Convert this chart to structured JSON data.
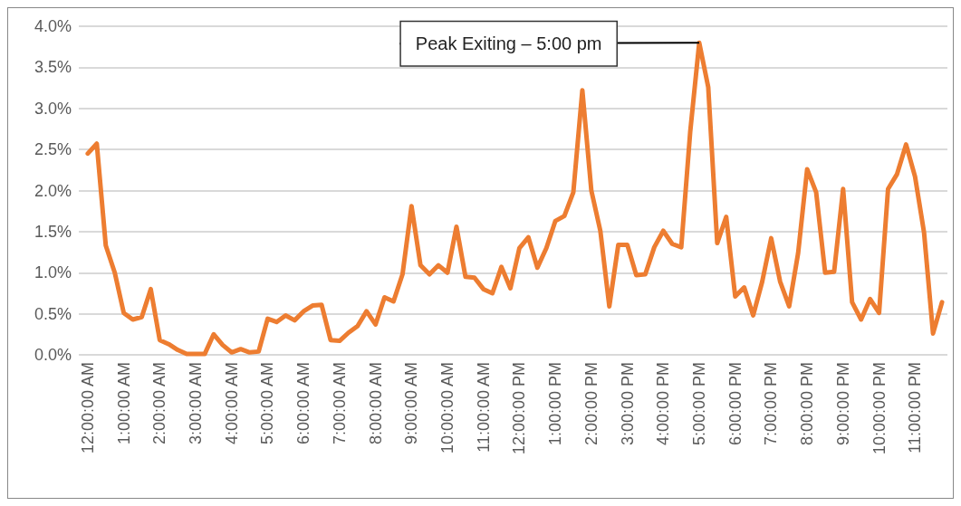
{
  "chart_data": {
    "type": "line",
    "x": [
      0,
      0.25,
      0.5,
      0.75,
      1,
      1.25,
      1.5,
      1.75,
      2,
      2.25,
      2.5,
      2.75,
      3,
      3.25,
      3.5,
      3.75,
      4,
      4.25,
      4.5,
      4.75,
      5,
      5.25,
      5.5,
      5.75,
      6,
      6.25,
      6.5,
      6.75,
      7,
      7.25,
      7.5,
      7.75,
      8,
      8.25,
      8.5,
      8.75,
      9,
      9.25,
      9.5,
      9.75,
      10,
      10.25,
      10.5,
      10.75,
      11,
      11.25,
      11.5,
      11.75,
      12,
      12.25,
      12.5,
      12.75,
      13,
      13.25,
      13.5,
      13.75,
      14,
      14.25,
      14.5,
      14.75,
      15,
      15.25,
      15.5,
      15.75,
      16,
      16.25,
      16.5,
      16.75,
      17,
      17.25,
      17.5,
      17.75,
      18,
      18.25,
      18.5,
      18.75,
      19,
      19.25,
      19.5,
      19.75,
      20,
      20.25,
      20.5,
      20.75,
      21,
      21.25,
      21.5,
      21.75,
      22,
      22.25,
      22.5,
      22.75,
      23,
      23.25,
      23.5,
      23.75
    ],
    "series": [
      {
        "color": "#ed7d31",
        "values": [
          2.45,
          2.57,
          1.33,
          1.0,
          0.51,
          0.43,
          0.46,
          0.8,
          0.18,
          0.13,
          0.06,
          0.01,
          0.01,
          0.01,
          0.25,
          0.12,
          0.03,
          0.07,
          0.03,
          0.04,
          0.44,
          0.4,
          0.48,
          0.42,
          0.53,
          0.6,
          0.61,
          0.18,
          0.17,
          0.27,
          0.35,
          0.53,
          0.37,
          0.7,
          0.65,
          0.98,
          1.81,
          1.09,
          0.98,
          1.09,
          1.0,
          1.56,
          0.95,
          0.94,
          0.8,
          0.75,
          1.07,
          0.81,
          1.3,
          1.43,
          1.06,
          1.3,
          1.63,
          1.69,
          1.98,
          3.22,
          2.0,
          1.51,
          0.59,
          1.34,
          1.34,
          0.97,
          0.98,
          1.31,
          1.51,
          1.35,
          1.31,
          2.72,
          3.8,
          3.26,
          1.36,
          1.68,
          0.71,
          0.82,
          0.48,
          0.89,
          1.42,
          0.89,
          0.59,
          1.24,
          2.26,
          1.98,
          1.0,
          1.01,
          2.02,
          0.64,
          0.43,
          0.68,
          0.51,
          2.02,
          2.2,
          2.56,
          2.17,
          1.49,
          0.26,
          0.64
        ]
      }
    ],
    "xlim": [
      -0.25,
      23.9
    ],
    "xticks": [
      {
        "value": 0,
        "label": "12:00:00 AM"
      },
      {
        "value": 1,
        "label": "1:00:00 AM"
      },
      {
        "value": 2,
        "label": "2:00:00 AM"
      },
      {
        "value": 3,
        "label": "3:00:00 AM"
      },
      {
        "value": 4,
        "label": "4:00:00 AM"
      },
      {
        "value": 5,
        "label": "5:00:00 AM"
      },
      {
        "value": 6,
        "label": "6:00:00 AM"
      },
      {
        "value": 7,
        "label": "7:00:00 AM"
      },
      {
        "value": 8,
        "label": "8:00:00 AM"
      },
      {
        "value": 9,
        "label": "9:00:00 AM"
      },
      {
        "value": 10,
        "label": "10:00:00 AM"
      },
      {
        "value": 11,
        "label": "11:00:00 AM"
      },
      {
        "value": 12,
        "label": "12:00:00 PM"
      },
      {
        "value": 13,
        "label": "1:00:00 PM"
      },
      {
        "value": 14,
        "label": "2:00:00 PM"
      },
      {
        "value": 15,
        "label": "3:00:00 PM"
      },
      {
        "value": 16,
        "label": "4:00:00 PM"
      },
      {
        "value": 17,
        "label": "5:00:00 PM"
      },
      {
        "value": 18,
        "label": "6:00:00 PM"
      },
      {
        "value": 19,
        "label": "7:00:00 PM"
      },
      {
        "value": 20,
        "label": "8:00:00 PM"
      },
      {
        "value": 21,
        "label": "9:00:00 PM"
      },
      {
        "value": 22,
        "label": "10:00:00 PM"
      },
      {
        "value": 23,
        "label": "11:00:00 PM"
      }
    ],
    "ylim": [
      0,
      4
    ],
    "yticks": [
      {
        "value": 0,
        "label": "0.0%"
      },
      {
        "value": 0.5,
        "label": "0.5%"
      },
      {
        "value": 1,
        "label": "1.0%"
      },
      {
        "value": 1.5,
        "label": "1.5%"
      },
      {
        "value": 2,
        "label": "2.0%"
      },
      {
        "value": 2.5,
        "label": "2.5%"
      },
      {
        "value": 3,
        "label": "3.0%"
      },
      {
        "value": 3.5,
        "label": "3.5%"
      },
      {
        "value": 4,
        "label": "4.0%"
      }
    ],
    "grid": "y",
    "marker": "none",
    "line_style": "solid",
    "annotations": [
      {
        "text": "Peak Exiting – 5:00 pm",
        "x": 17,
        "y": 3.8
      }
    ]
  }
}
